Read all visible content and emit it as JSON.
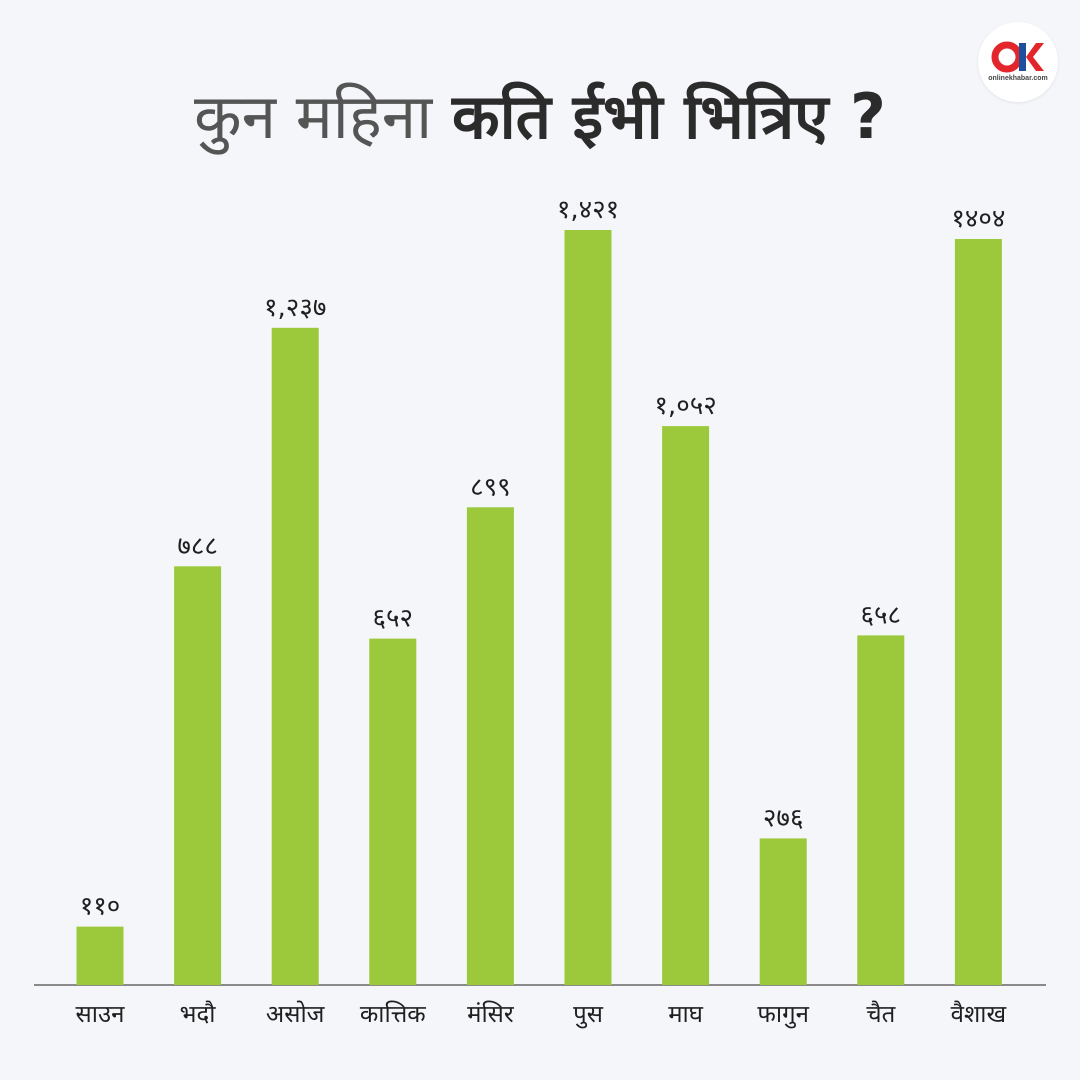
{
  "header": {
    "title_light": "कुन महिना",
    "title_bold": "कति ईभी भित्रिए ?"
  },
  "logo": {
    "text": "onlinekhabar.com",
    "colors": {
      "brand_red": "#e3262b",
      "brand_blue": "#1c4f9c"
    }
  },
  "colors": {
    "bar": "#9cc93b",
    "background": "#f5f6fa",
    "text": "#1f1f1f"
  },
  "chart_data": {
    "type": "bar",
    "title": "कुन महिना कति ईभी भित्रिए ?",
    "categories": [
      "साउन",
      "भदौ",
      "असोज",
      "कात्तिक",
      "मंसिर",
      "पुस",
      "माघ",
      "फागुन",
      "चैत",
      "वैशाख"
    ],
    "values": [
      110,
      788,
      1237,
      652,
      899,
      1421,
      1052,
      276,
      658,
      1404
    ],
    "value_labels": [
      "११०",
      "७८८",
      "१,२३७",
      "६५२",
      "८९९",
      "१,४२१",
      "१,०५२",
      "२७६",
      "६५८",
      "१४०४"
    ],
    "xlabel": "",
    "ylabel": "",
    "ylim": [
      0,
      1421
    ],
    "grid": false,
    "legend": "none"
  }
}
